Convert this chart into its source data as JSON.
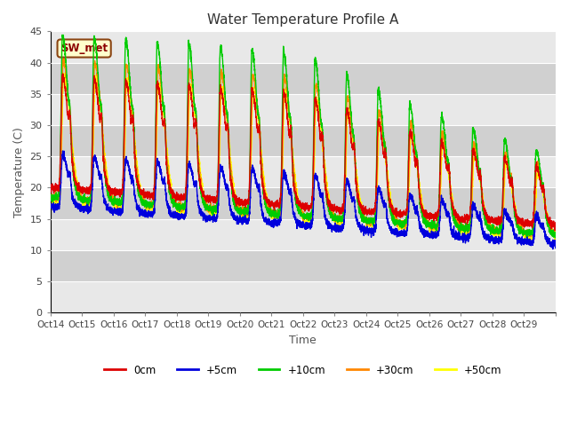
{
  "title": "Water Temperature Profile A",
  "xlabel": "Time",
  "ylabel": "Temperature (C)",
  "ylim": [
    0,
    45
  ],
  "yticks": [
    0,
    5,
    10,
    15,
    20,
    25,
    30,
    35,
    40,
    45
  ],
  "colors": {
    "0cm": "#dd0000",
    "+5cm": "#0000dd",
    "+10cm": "#00cc00",
    "+30cm": "#ff8800",
    "+50cm": "#ffff00"
  },
  "legend_label": "SW_met",
  "xtick_labels": [
    "Oct 14",
    "Oct 15",
    "Oct 16",
    "Oct 17",
    "Oct 18",
    "Oct 19",
    "Oct 20",
    "Oct 21",
    "Oct 22",
    "Oct 23",
    "Oct 24",
    "Oct 25",
    "Oct 26",
    "Oct 27",
    "Oct 28",
    "Oct 29"
  ],
  "num_days": 16,
  "num_points_per_day": 288,
  "band_colors": [
    "#e8e8e8",
    "#d8d8d8"
  ]
}
